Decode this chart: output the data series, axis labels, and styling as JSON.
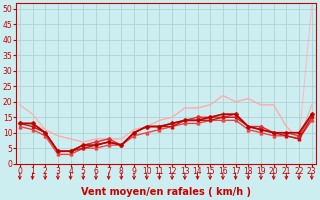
{
  "background_color": "#cceef0",
  "grid_color": "#aacccc",
  "xlabel": "Vent moyen/en rafales ( km/h )",
  "xlabel_color": "#cc0000",
  "xlabel_fontsize": 7,
  "xticks": [
    0,
    1,
    2,
    3,
    4,
    5,
    6,
    7,
    8,
    9,
    10,
    11,
    12,
    13,
    14,
    15,
    16,
    17,
    18,
    19,
    20,
    21,
    22,
    23
  ],
  "yticks": [
    0,
    5,
    10,
    15,
    20,
    25,
    30,
    35,
    40,
    45,
    50
  ],
  "ylim": [
    0,
    52
  ],
  "xlim": [
    -0.3,
    23.3
  ],
  "tick_color": "#cc0000",
  "tick_fontsize": 5.5,
  "series": [
    {
      "x": [
        0,
        1,
        2,
        3,
        4,
        5,
        6,
        7,
        8,
        9,
        10,
        11,
        12,
        13,
        14,
        15,
        16,
        17,
        18,
        19,
        20,
        21,
        22,
        23
      ],
      "y": [
        19,
        16,
        11,
        9,
        8,
        7,
        8,
        8,
        8,
        11,
        12,
        14,
        15,
        18,
        18,
        19,
        22,
        20,
        21,
        19,
        19,
        12,
        8,
        19
      ],
      "color": "#ffaaaa",
      "marker": "None",
      "markersize": 0,
      "linewidth": 0.8,
      "zorder": 2,
      "linestyle": "-"
    },
    {
      "x": [
        0,
        1,
        2,
        3,
        4,
        5,
        6,
        7,
        8,
        9,
        10,
        11,
        12,
        13,
        14,
        15,
        16,
        17,
        18,
        19,
        20,
        21,
        22,
        23
      ],
      "y": [
        13,
        13,
        11,
        9,
        8,
        7,
        8,
        8,
        8,
        11,
        12,
        14,
        15,
        18,
        18,
        19,
        22,
        20,
        21,
        19,
        19,
        12,
        8,
        51
      ],
      "color": "#ffbbbb",
      "marker": "None",
      "markersize": 0,
      "linewidth": 0.8,
      "zorder": 1,
      "linestyle": "-"
    },
    {
      "x": [
        0,
        1,
        2,
        3,
        4,
        5,
        6,
        7,
        8,
        9,
        10,
        11,
        12,
        13,
        14,
        15,
        16,
        17,
        18,
        19,
        20,
        21,
        22,
        23
      ],
      "y": [
        13,
        13,
        10,
        4,
        4,
        6,
        7,
        8,
        6,
        10,
        12,
        12,
        13,
        14,
        15,
        15,
        15,
        16,
        12,
        12,
        10,
        10,
        9,
        16
      ],
      "color": "#dd3333",
      "marker": "D",
      "markersize": 2,
      "linewidth": 1.0,
      "zorder": 3,
      "linestyle": "-"
    },
    {
      "x": [
        0,
        1,
        2,
        3,
        4,
        5,
        6,
        7,
        8,
        9,
        10,
        11,
        12,
        13,
        14,
        15,
        16,
        17,
        18,
        19,
        20,
        21,
        22,
        23
      ],
      "y": [
        13,
        13,
        10,
        4,
        4,
        6,
        6,
        7,
        6,
        10,
        12,
        12,
        13,
        14,
        14,
        15,
        16,
        16,
        12,
        11,
        10,
        10,
        10,
        16
      ],
      "color": "#bb0000",
      "marker": "+",
      "markersize": 3,
      "linewidth": 1.2,
      "zorder": 4,
      "linestyle": "-"
    },
    {
      "x": [
        0,
        1,
        2,
        3,
        4,
        5,
        6,
        7,
        8,
        9,
        10,
        11,
        12,
        13,
        14,
        15,
        16,
        17,
        18,
        19,
        20,
        21,
        22,
        23
      ],
      "y": [
        13,
        12,
        10,
        4,
        4,
        5,
        6,
        7,
        6,
        10,
        12,
        12,
        12,
        14,
        14,
        14,
        15,
        15,
        12,
        11,
        10,
        9,
        8,
        15
      ],
      "color": "#cc1111",
      "marker": "s",
      "markersize": 2,
      "linewidth": 1.0,
      "zorder": 3,
      "linestyle": "-"
    },
    {
      "x": [
        0,
        1,
        2,
        3,
        4,
        5,
        6,
        7,
        8,
        9,
        10,
        11,
        12,
        13,
        14,
        15,
        16,
        17,
        18,
        19,
        20,
        21,
        22,
        23
      ],
      "y": [
        12,
        11,
        9,
        3,
        3,
        5,
        5,
        6,
        6,
        9,
        10,
        11,
        12,
        13,
        13,
        14,
        14,
        14,
        11,
        10,
        9,
        9,
        8,
        14
      ],
      "color": "#ee4444",
      "marker": "^",
      "markersize": 2,
      "linewidth": 1.0,
      "zorder": 2,
      "linestyle": "-"
    }
  ],
  "arrow_color": "#cc0000"
}
